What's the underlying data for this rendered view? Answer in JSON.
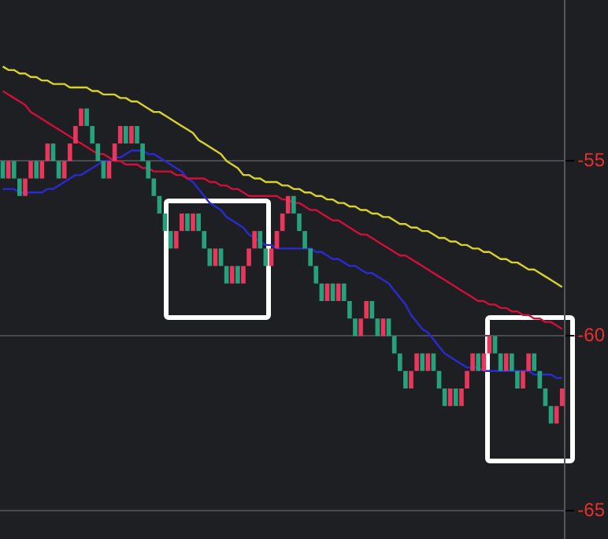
{
  "chart_data": {
    "type": "candlestick",
    "categories": [
      null,
      null,
      null,
      null,
      null,
      null,
      null,
      null,
      null,
      null,
      null,
      null,
      null,
      null,
      null,
      null,
      null,
      null,
      null,
      null,
      null,
      null,
      null,
      null,
      null,
      null,
      null,
      null,
      null,
      null,
      null,
      null,
      null,
      null,
      null,
      null,
      null,
      null,
      null,
      null,
      null,
      null,
      null,
      null,
      null,
      null,
      null,
      null,
      null,
      null,
      null,
      null,
      null,
      null,
      null,
      null,
      null,
      null,
      null,
      null,
      null,
      null,
      null,
      null,
      null,
      null,
      null,
      null,
      null,
      null,
      null,
      null,
      null,
      null,
      null,
      null,
      null,
      null,
      null,
      null,
      null,
      null,
      null,
      null,
      null,
      null,
      null,
      null,
      null,
      null,
      null,
      null,
      null,
      null,
      null,
      null,
      null,
      null,
      null,
      null,
      null
    ],
    "ohlc": [
      [
        -55,
        -55,
        -55.5,
        -55.5
      ],
      [
        -55.5,
        -55,
        -55.5,
        -55
      ],
      [
        -55,
        -55,
        -55.5,
        -55.5
      ],
      [
        -55.5,
        -55.5,
        -56,
        -56
      ],
      [
        -56,
        -55.5,
        -56,
        -55.5
      ],
      [
        -55.5,
        -55,
        -55.5,
        -55
      ],
      [
        -55,
        -55,
        -55.5,
        -55.5
      ],
      [
        -55.5,
        -55,
        -55.5,
        -55
      ],
      [
        -55,
        -54.5,
        -55,
        -54.5
      ],
      [
        -54.5,
        -54.5,
        -55,
        -55
      ],
      [
        -55,
        -55,
        -55.5,
        -55.5
      ],
      [
        -55.5,
        -55,
        -55.5,
        -55
      ],
      [
        -55,
        -54.5,
        -55,
        -54.5
      ],
      [
        -54.5,
        -54,
        -54.5,
        -54
      ],
      [
        -54,
        -53.5,
        -54,
        -53.5
      ],
      [
        -53.5,
        -53.5,
        -54,
        -54
      ],
      [
        -54,
        -54,
        -54.5,
        -54.5
      ],
      [
        -54.5,
        -54.5,
        -55,
        -55
      ],
      [
        -55,
        -55,
        -55.5,
        -55.5
      ],
      [
        -55.5,
        -55,
        -55.5,
        -55
      ],
      [
        -55,
        -54.5,
        -55,
        -54.5
      ],
      [
        -54.5,
        -54,
        -54.5,
        -54
      ],
      [
        -54,
        -54,
        -54.5,
        -54.5
      ],
      [
        -54.5,
        -54,
        -54.5,
        -54
      ],
      [
        -54,
        -54,
        -54.5,
        -54.5
      ],
      [
        -54.5,
        -54.5,
        -55,
        -55
      ],
      [
        -55,
        -55,
        -55.5,
        -55.5
      ],
      [
        -55.5,
        -55.5,
        -56,
        -56
      ],
      [
        -56,
        -56,
        -56.5,
        -56.5
      ],
      [
        -56.5,
        -56.5,
        -57,
        -57
      ],
      [
        -57,
        -57,
        -57.5,
        -57.5
      ],
      [
        -57.5,
        -57,
        -57.5,
        -57
      ],
      [
        -57,
        -56.5,
        -57,
        -56.5
      ],
      [
        -56.5,
        -56.5,
        -57,
        -57
      ],
      [
        -57,
        -56.5,
        -57,
        -56.5
      ],
      [
        -56.5,
        -56.5,
        -57,
        -57
      ],
      [
        -57,
        -57,
        -57.5,
        -57.5
      ],
      [
        -57.5,
        -57.5,
        -58,
        -58
      ],
      [
        -58,
        -57.5,
        -58,
        -57.5
      ],
      [
        -57.5,
        -57.5,
        -58,
        -58
      ],
      [
        -58,
        -58,
        -58.5,
        -58.5
      ],
      [
        -58.5,
        -58,
        -58.5,
        -58
      ],
      [
        -58,
        -58,
        -58.5,
        -58.5
      ],
      [
        -58.5,
        -58,
        -58.5,
        -58
      ],
      [
        -58,
        -57.5,
        -58,
        -57.5
      ],
      [
        -57.5,
        -57,
        -57.5,
        -57
      ],
      [
        -57,
        -57,
        -57.5,
        -57.5
      ],
      [
        -57.5,
        -57.5,
        -58,
        -58
      ],
      [
        -58,
        -57.5,
        -58,
        -57.5
      ],
      [
        -57.5,
        -57,
        -57.5,
        -57
      ],
      [
        -57,
        -56.5,
        -57,
        -56.5
      ],
      [
        -56.5,
        -56,
        -56.5,
        -56
      ],
      [
        -56,
        -56,
        -56.5,
        -56.5
      ],
      [
        -56.5,
        -56.5,
        -57,
        -57
      ],
      [
        -57,
        -57,
        -57.5,
        -57.5
      ],
      [
        -57.5,
        -57.5,
        -58,
        -58
      ],
      [
        -58,
        -58,
        -58.5,
        -58.5
      ],
      [
        -58.5,
        -58.5,
        -59,
        -59
      ],
      [
        -59,
        -58.5,
        -59,
        -58.5
      ],
      [
        -58.5,
        -58.5,
        -59,
        -59
      ],
      [
        -59,
        -58.5,
        -59,
        -58.5
      ],
      [
        -58.5,
        -58.5,
        -59,
        -59
      ],
      [
        -59,
        -59,
        -59.5,
        -59.5
      ],
      [
        -59.5,
        -59.5,
        -60,
        -60
      ],
      [
        -60,
        -59.5,
        -60,
        -59.5
      ],
      [
        -59.5,
        -59,
        -59.5,
        -59
      ],
      [
        -59,
        -59,
        -59.5,
        -59.5
      ],
      [
        -59.5,
        -59.5,
        -60,
        -60
      ],
      [
        -60,
        -59.5,
        -60,
        -59.5
      ],
      [
        -59.5,
        -59.5,
        -60,
        -60
      ],
      [
        -60,
        -60,
        -60.5,
        -60.5
      ],
      [
        -60.5,
        -60.5,
        -61,
        -61
      ],
      [
        -61,
        -61,
        -61.5,
        -61.5
      ],
      [
        -61.5,
        -61,
        -61.5,
        -61
      ],
      [
        -61,
        -60.5,
        -61,
        -60.5
      ],
      [
        -60.5,
        -60.5,
        -61,
        -61
      ],
      [
        -61,
        -60.5,
        -61,
        -60.5
      ],
      [
        -60.5,
        -60.5,
        -61,
        -61
      ],
      [
        -61,
        -61,
        -61.5,
        -61.5
      ],
      [
        -61.5,
        -61.5,
        -62,
        -62
      ],
      [
        -62,
        -61.5,
        -62,
        -61.5
      ],
      [
        -61.5,
        -61.5,
        -62,
        -62
      ],
      [
        -62,
        -61.5,
        -62,
        -61.5
      ],
      [
        -61.5,
        -61,
        -61.5,
        -61
      ],
      [
        -61,
        -60.5,
        -61,
        -60.5
      ],
      [
        -60.5,
        -60.5,
        -61,
        -61
      ],
      [
        -61,
        -60.5,
        -61,
        -60.5
      ],
      [
        -60.5,
        -60,
        -60.5,
        -60
      ],
      [
        -60,
        -60,
        -60.5,
        -60.5
      ],
      [
        -60.5,
        -60.5,
        -61,
        -61
      ],
      [
        -61,
        -60.5,
        -61,
        -60.5
      ],
      [
        -60.5,
        -60.5,
        -61,
        -61
      ],
      [
        -61,
        -61,
        -61.5,
        -61.5
      ],
      [
        -61.5,
        -61,
        -61.5,
        -61
      ],
      [
        -61,
        -60.5,
        -61,
        -60.5
      ],
      [
        -60.5,
        -60.5,
        -61,
        -61
      ],
      [
        -61,
        -61,
        -61.5,
        -61.5
      ],
      [
        -61.5,
        -61.5,
        -62,
        -62
      ],
      [
        -62,
        -62,
        -62.5,
        -62.5
      ],
      [
        -62.5,
        -62,
        -62.5,
        -62
      ],
      [
        -62,
        -61.5,
        -62,
        -61.5
      ]
    ],
    "colors": [
      "#26a17b",
      "#e8365c",
      "#26a17b",
      "#26a17b",
      "#e8365c",
      "#e8365c",
      "#26a17b",
      "#e8365c",
      "#e8365c",
      "#26a17b",
      "#26a17b",
      "#e8365c",
      "#e8365c",
      "#e8365c",
      "#e8365c",
      "#26a17b",
      "#26a17b",
      "#26a17b",
      "#26a17b",
      "#e8365c",
      "#e8365c",
      "#e8365c",
      "#26a17b",
      "#e8365c",
      "#26a17b",
      "#26a17b",
      "#26a17b",
      "#26a17b",
      "#26a17b",
      "#26a17b",
      "#26a17b",
      "#e8365c",
      "#e8365c",
      "#26a17b",
      "#e8365c",
      "#26a17b",
      "#26a17b",
      "#26a17b",
      "#e8365c",
      "#26a17b",
      "#26a17b",
      "#e8365c",
      "#26a17b",
      "#e8365c",
      "#e8365c",
      "#e8365c",
      "#26a17b",
      "#26a17b",
      "#e8365c",
      "#e8365c",
      "#e8365c",
      "#e8365c",
      "#26a17b",
      "#26a17b",
      "#26a17b",
      "#26a17b",
      "#26a17b",
      "#26a17b",
      "#e8365c",
      "#26a17b",
      "#e8365c",
      "#26a17b",
      "#26a17b",
      "#26a17b",
      "#e8365c",
      "#e8365c",
      "#26a17b",
      "#26a17b",
      "#e8365c",
      "#26a17b",
      "#26a17b",
      "#26a17b",
      "#26a17b",
      "#e8365c",
      "#e8365c",
      "#26a17b",
      "#e8365c",
      "#26a17b",
      "#26a17b",
      "#26a17b",
      "#e8365c",
      "#26a17b",
      "#e8365c",
      "#e8365c",
      "#e8365c",
      "#26a17b",
      "#e8365c",
      "#e8365c",
      "#26a17b",
      "#26a17b",
      "#e8365c",
      "#26a17b",
      "#26a17b",
      "#e8365c",
      "#e8365c",
      "#26a17b",
      "#26a17b",
      "#26a17b",
      "#26a17b",
      "#e8365c",
      "#e8365c"
    ],
    "series": [
      {
        "type": "line",
        "color": "#d8d22a",
        "values": [
          -52.3,
          -52.4,
          -52.4,
          -52.5,
          -52.5,
          -52.6,
          -52.6,
          -52.7,
          -52.7,
          -52.8,
          -52.8,
          -52.8,
          -52.9,
          -52.9,
          -52.9,
          -52.9,
          -53.0,
          -53.0,
          -53.1,
          -53.1,
          -53.1,
          -53.2,
          -53.2,
          -53.3,
          -53.3,
          -53.4,
          -53.5,
          -53.6,
          -53.6,
          -53.7,
          -53.8,
          -53.9,
          -54.0,
          -54.1,
          -54.2,
          -54.4,
          -54.5,
          -54.6,
          -54.7,
          -54.8,
          -55.0,
          -55.1,
          -55.2,
          -55.4,
          -55.4,
          -55.5,
          -55.5,
          -55.6,
          -55.6,
          -55.6,
          -55.7,
          -55.7,
          -55.8,
          -55.8,
          -55.9,
          -55.9,
          -56.0,
          -56.0,
          -56.1,
          -56.1,
          -56.2,
          -56.2,
          -56.3,
          -56.3,
          -56.4,
          -56.4,
          -56.5,
          -56.5,
          -56.6,
          -56.6,
          -56.7,
          -56.8,
          -56.8,
          -56.9,
          -56.9,
          -57.0,
          -57.0,
          -57.1,
          -57.2,
          -57.2,
          -57.3,
          -57.3,
          -57.4,
          -57.4,
          -57.5,
          -57.5,
          -57.6,
          -57.6,
          -57.7,
          -57.8,
          -57.8,
          -57.9,
          -57.9,
          -58.0,
          -58.1,
          -58.1,
          -58.2,
          -58.3,
          -58.4,
          -58.5,
          -58.6
        ]
      },
      {
        "type": "line",
        "color": "#d0103a",
        "values": [
          -53.0,
          -53.1,
          -53.2,
          -53.3,
          -53.4,
          -53.6,
          -53.7,
          -53.8,
          -53.9,
          -54.0,
          -54.1,
          -54.2,
          -54.3,
          -54.4,
          -54.5,
          -54.6,
          -54.7,
          -54.8,
          -54.8,
          -54.9,
          -55.0,
          -55.0,
          -55.1,
          -55.1,
          -55.1,
          -55.2,
          -55.2,
          -55.3,
          -55.3,
          -55.3,
          -55.3,
          -55.4,
          -55.4,
          -55.5,
          -55.5,
          -55.5,
          -55.5,
          -55.6,
          -55.6,
          -55.7,
          -55.7,
          -55.8,
          -55.8,
          -55.9,
          -56.0,
          -56.0,
          -56.0,
          -56.0,
          -56.0,
          -56.0,
          -56.1,
          -56.1,
          -56.2,
          -56.2,
          -56.3,
          -56.4,
          -56.4,
          -56.5,
          -56.6,
          -56.7,
          -56.7,
          -56.8,
          -56.9,
          -57.0,
          -57.1,
          -57.1,
          -57.2,
          -57.3,
          -57.4,
          -57.5,
          -57.6,
          -57.7,
          -57.7,
          -57.8,
          -57.9,
          -58.0,
          -58.1,
          -58.2,
          -58.3,
          -58.4,
          -58.5,
          -58.6,
          -58.7,
          -58.8,
          -58.9,
          -59.0,
          -59.0,
          -59.1,
          -59.1,
          -59.2,
          -59.2,
          -59.3,
          -59.3,
          -59.4,
          -59.4,
          -59.5,
          -59.5,
          -59.6,
          -59.6,
          -59.7,
          -59.8
        ]
      },
      {
        "type": "line",
        "color": "#2a2ad2",
        "values": [
          -55.8,
          -55.8,
          -55.8,
          -55.9,
          -55.9,
          -55.9,
          -55.9,
          -55.9,
          -55.8,
          -55.8,
          -55.7,
          -55.6,
          -55.5,
          -55.4,
          -55.4,
          -55.3,
          -55.2,
          -55.1,
          -55.0,
          -55.0,
          -54.9,
          -54.9,
          -54.8,
          -54.7,
          -54.7,
          -54.7,
          -54.8,
          -54.8,
          -54.9,
          -55.0,
          -55.1,
          -55.2,
          -55.3,
          -55.5,
          -55.6,
          -55.8,
          -56.0,
          -56.2,
          -56.3,
          -56.4,
          -56.6,
          -56.7,
          -56.8,
          -56.9,
          -57.1,
          -57.2,
          -57.3,
          -57.4,
          -57.4,
          -57.5,
          -57.5,
          -57.5,
          -57.5,
          -57.5,
          -57.5,
          -57.5,
          -57.6,
          -57.6,
          -57.7,
          -57.8,
          -57.8,
          -57.9,
          -58.0,
          -58.0,
          -58.1,
          -58.2,
          -58.2,
          -58.3,
          -58.4,
          -58.5,
          -58.7,
          -58.9,
          -59.1,
          -59.4,
          -59.6,
          -59.8,
          -59.9,
          -60.1,
          -60.3,
          -60.5,
          -60.6,
          -60.7,
          -60.8,
          -60.9,
          -60.9,
          -60.9,
          -61.0,
          -61.0,
          -61.0,
          -61.0,
          -61.0,
          -61.0,
          -61.0,
          -61.0,
          -61.0,
          -61.1,
          -61.1,
          -61.1,
          -61.1,
          -61.2,
          -61.2
        ]
      }
    ],
    "ylim": [
      -65.8,
      -50.4
    ],
    "yticks": [
      -55,
      -60,
      -65
    ],
    "grid": "y",
    "tick_labels": "y",
    "legend": false,
    "marker": "none",
    "line_style": "solid"
  }
}
